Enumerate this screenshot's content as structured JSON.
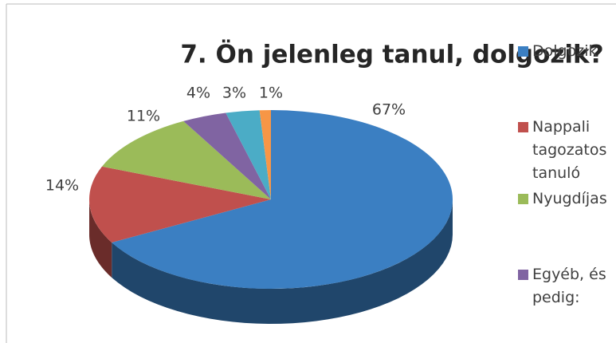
{
  "chart_data": {
    "type": "pie3d",
    "title": "7. Ön jelenleg tanul, dolgozik?",
    "categories": [
      "Dolgozik",
      "Nappali tagozatos tanuló",
      "Nyugdíjas",
      "Egyéb, és pedig:",
      null,
      null
    ],
    "values": [
      67,
      14,
      11,
      4,
      3,
      1
    ],
    "value_labels": [
      "67%",
      "14%",
      "11%",
      "4%",
      "3%",
      "1%"
    ],
    "colors": [
      "#3b7fc2",
      "#c0504d",
      "#9bbb59",
      "#8064a2",
      "#4bacc6",
      "#f79646"
    ],
    "legend": "right"
  }
}
